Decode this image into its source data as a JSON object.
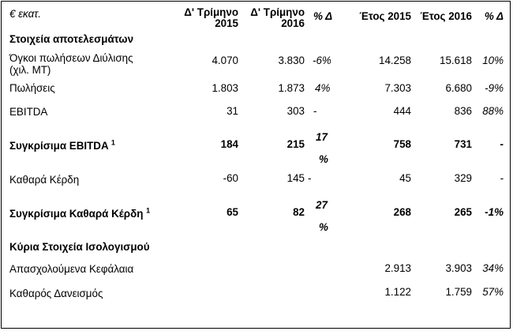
{
  "header": {
    "unit": "€ εκατ.",
    "q4_2015": [
      "Δ' Τρίμηνο",
      "2015"
    ],
    "q4_2016": [
      "Δ' Τρίμηνο",
      "2016"
    ],
    "pct_q": "% Δ",
    "year_2015": "Έτος 2015",
    "year_2016": "Έτος 2016",
    "pct_y": "% Δ"
  },
  "sections": {
    "results": "Στοιχεία αποτελεσμάτων",
    "balance": "Κύρια Στοιχεία Ισολογισμού"
  },
  "rows": {
    "sales_volume": {
      "label": [
        "Όγκοι πωλήσεων Διύλισης",
        "(χιλ. ΜΤ)"
      ],
      "q15": "4.070",
      "q16": "3.830",
      "pq": "-6%",
      "y15": "14.258",
      "y16": "15.618",
      "py": "10%"
    },
    "sales": {
      "label": "Πωλήσεις",
      "q15": "1.803",
      "q16": "1.873",
      "pq": "4%",
      "y15": "7.303",
      "y16": "6.680",
      "py": "-9%"
    },
    "ebitda": {
      "label": "EBITDA",
      "q15": "31",
      "q16": "303",
      "pq": "-",
      "y15": "444",
      "y16": "836",
      "py": "88%"
    },
    "adj_ebitda": {
      "label": "Συγκρίσιμα EBITDA",
      "sup": "1",
      "q15": "184",
      "q16": "215",
      "pq": [
        "17",
        "%"
      ],
      "y15": "758",
      "y16": "731",
      "py": "-"
    },
    "net_income": {
      "label": "Καθαρά Κέρδη",
      "q15": "-60",
      "q16": "145",
      "pq": "-",
      "y15": "45",
      "y16": "329",
      "py": "-"
    },
    "adj_net_income": {
      "label": "Συγκρίσιμα Καθαρά Κέρδη",
      "sup": "1",
      "q15": "65",
      "q16": "82",
      "pq": [
        "27",
        "%"
      ],
      "y15": "268",
      "y16": "265",
      "py": "-1%"
    },
    "capital_employed": {
      "label": "Απασχολούμενα Κεφάλαια",
      "y15": "2.913",
      "y16": "3.903",
      "py": "34%"
    },
    "net_debt": {
      "label": "Καθαρός Δανεισμός",
      "y15": "1.122",
      "y16": "1.759",
      "py": "57%"
    }
  }
}
